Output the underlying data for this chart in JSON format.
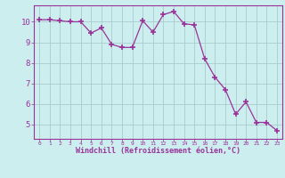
{
  "x": [
    0,
    1,
    2,
    3,
    4,
    5,
    6,
    7,
    8,
    9,
    10,
    11,
    12,
    13,
    14,
    15,
    16,
    17,
    18,
    19,
    20,
    21,
    22,
    23
  ],
  "y": [
    10.1,
    10.1,
    10.05,
    10.0,
    10.0,
    9.45,
    9.7,
    8.9,
    8.75,
    8.75,
    10.05,
    9.5,
    10.35,
    10.5,
    9.9,
    9.85,
    8.2,
    7.3,
    6.7,
    5.5,
    6.1,
    5.1,
    5.1,
    4.7
  ],
  "line_color": "#993399",
  "marker": "+",
  "bg_color": "#cceeee",
  "grid_color": "#aacccc",
  "axis_label_color": "#993399",
  "tick_color": "#993399",
  "xlabel": "Windchill (Refroidissement éolien,°C)",
  "ylim": [
    4.3,
    10.8
  ],
  "yticks": [
    5,
    6,
    7,
    8,
    9,
    10
  ],
  "xticks": [
    0,
    1,
    2,
    3,
    4,
    5,
    6,
    7,
    8,
    9,
    10,
    11,
    12,
    13,
    14,
    15,
    16,
    17,
    18,
    19,
    20,
    21,
    22,
    23
  ],
  "spine_color": "#993399"
}
